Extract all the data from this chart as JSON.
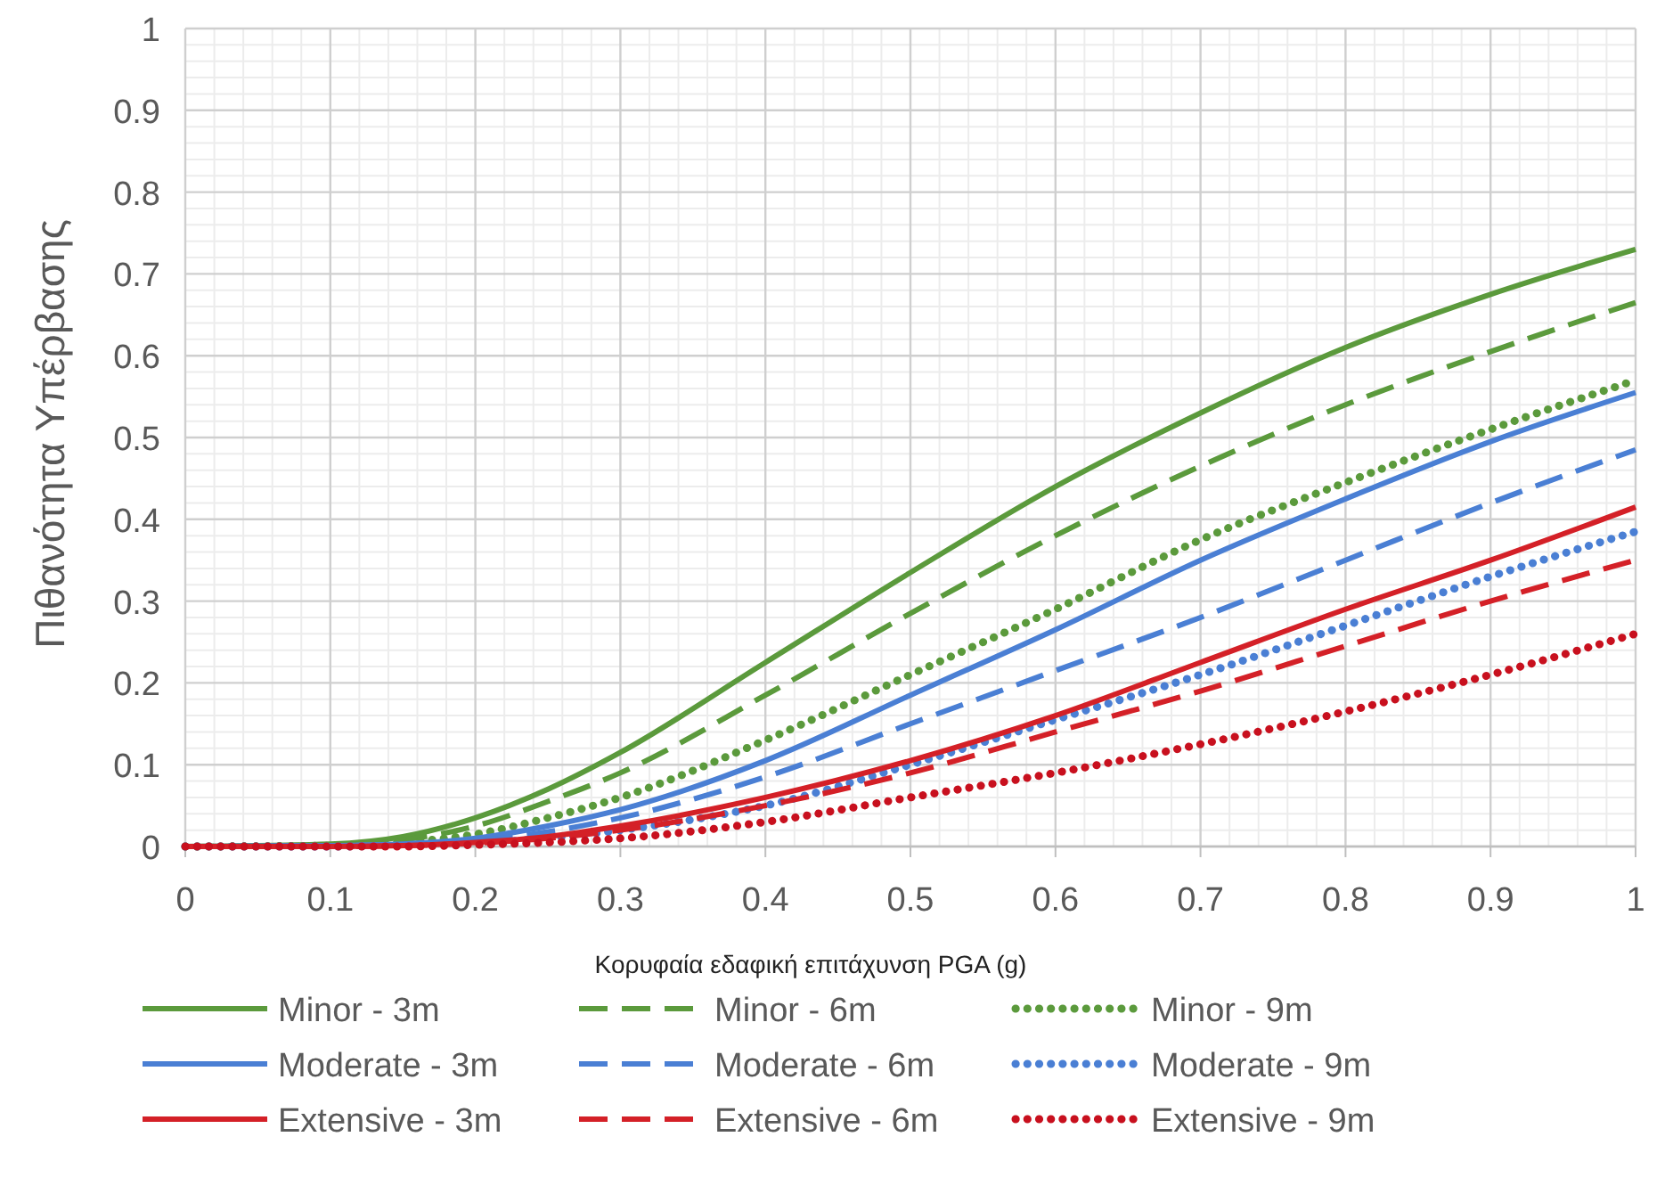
{
  "chart_data": {
    "type": "line",
    "xlabel": "Κορυφαία εδαφική επιτάχυνση PGA (g)",
    "ylabel": "Πιθανότητα Υπέρβασης",
    "x": [
      0,
      0.1,
      0.15,
      0.2,
      0.25,
      0.3,
      0.4,
      0.5,
      0.6,
      0.7,
      0.8,
      0.9,
      1
    ],
    "xlim": [
      0,
      1
    ],
    "xticks": [
      0,
      0.1,
      0.2,
      0.3,
      0.4,
      0.5,
      0.6,
      0.7,
      0.8,
      0.9,
      1
    ],
    "ylim": [
      0,
      1
    ],
    "yticks": [
      0,
      0.1,
      0.2,
      0.3,
      0.4,
      0.5,
      0.6,
      0.7,
      0.8,
      0.9,
      1
    ],
    "grid": true,
    "legend": "bottom",
    "series": [
      {
        "name": "Minor - 3m",
        "color": "#5b9a3c",
        "line_style": "solid",
        "values": [
          0,
          0.003,
          0.012,
          0.035,
          0.07,
          0.115,
          0.225,
          0.335,
          0.44,
          0.53,
          0.61,
          0.675,
          0.73
        ]
      },
      {
        "name": "Minor - 6m",
        "color": "#5b9a3c",
        "line_style": "dashed",
        "values": [
          0,
          0.002,
          0.008,
          0.025,
          0.055,
          0.09,
          0.185,
          0.285,
          0.38,
          0.465,
          0.54,
          0.605,
          0.665
        ]
      },
      {
        "name": "Minor - 9m",
        "color": "#5b9a3c",
        "line_style": "dotted",
        "values": [
          0,
          0.001,
          0.005,
          0.015,
          0.035,
          0.06,
          0.13,
          0.21,
          0.29,
          0.375,
          0.445,
          0.51,
          0.57
        ]
      },
      {
        "name": "Moderate - 3m",
        "color": "#4a7fd4",
        "line_style": "solid",
        "values": [
          0,
          0.001,
          0.003,
          0.01,
          0.025,
          0.045,
          0.105,
          0.185,
          0.265,
          0.35,
          0.425,
          0.495,
          0.555
        ]
      },
      {
        "name": "Moderate - 6m",
        "color": "#4a7fd4",
        "line_style": "dashed",
        "values": [
          0,
          0.001,
          0.002,
          0.007,
          0.018,
          0.035,
          0.085,
          0.15,
          0.215,
          0.28,
          0.35,
          0.42,
          0.485
        ]
      },
      {
        "name": "Moderate - 9m",
        "color": "#4a7fd4",
        "line_style": "dotted",
        "values": [
          0,
          0,
          0.001,
          0.004,
          0.01,
          0.02,
          0.05,
          0.1,
          0.155,
          0.21,
          0.27,
          0.33,
          0.385
        ]
      },
      {
        "name": "Extensive - 3m",
        "color": "#d42027",
        "line_style": "solid",
        "values": [
          0,
          0,
          0.001,
          0.005,
          0.012,
          0.025,
          0.06,
          0.105,
          0.16,
          0.225,
          0.29,
          0.35,
          0.415
        ]
      },
      {
        "name": "Extensive - 6m",
        "color": "#d42027",
        "line_style": "dashed",
        "values": [
          0,
          0,
          0.001,
          0.004,
          0.01,
          0.02,
          0.05,
          0.09,
          0.14,
          0.19,
          0.245,
          0.3,
          0.35
        ]
      },
      {
        "name": "Extensive - 9m",
        "color": "#c8101e",
        "line_style": "dotted",
        "values": [
          0,
          0,
          0,
          0.002,
          0.005,
          0.01,
          0.03,
          0.06,
          0.09,
          0.125,
          0.165,
          0.21,
          0.26
        ]
      }
    ]
  }
}
